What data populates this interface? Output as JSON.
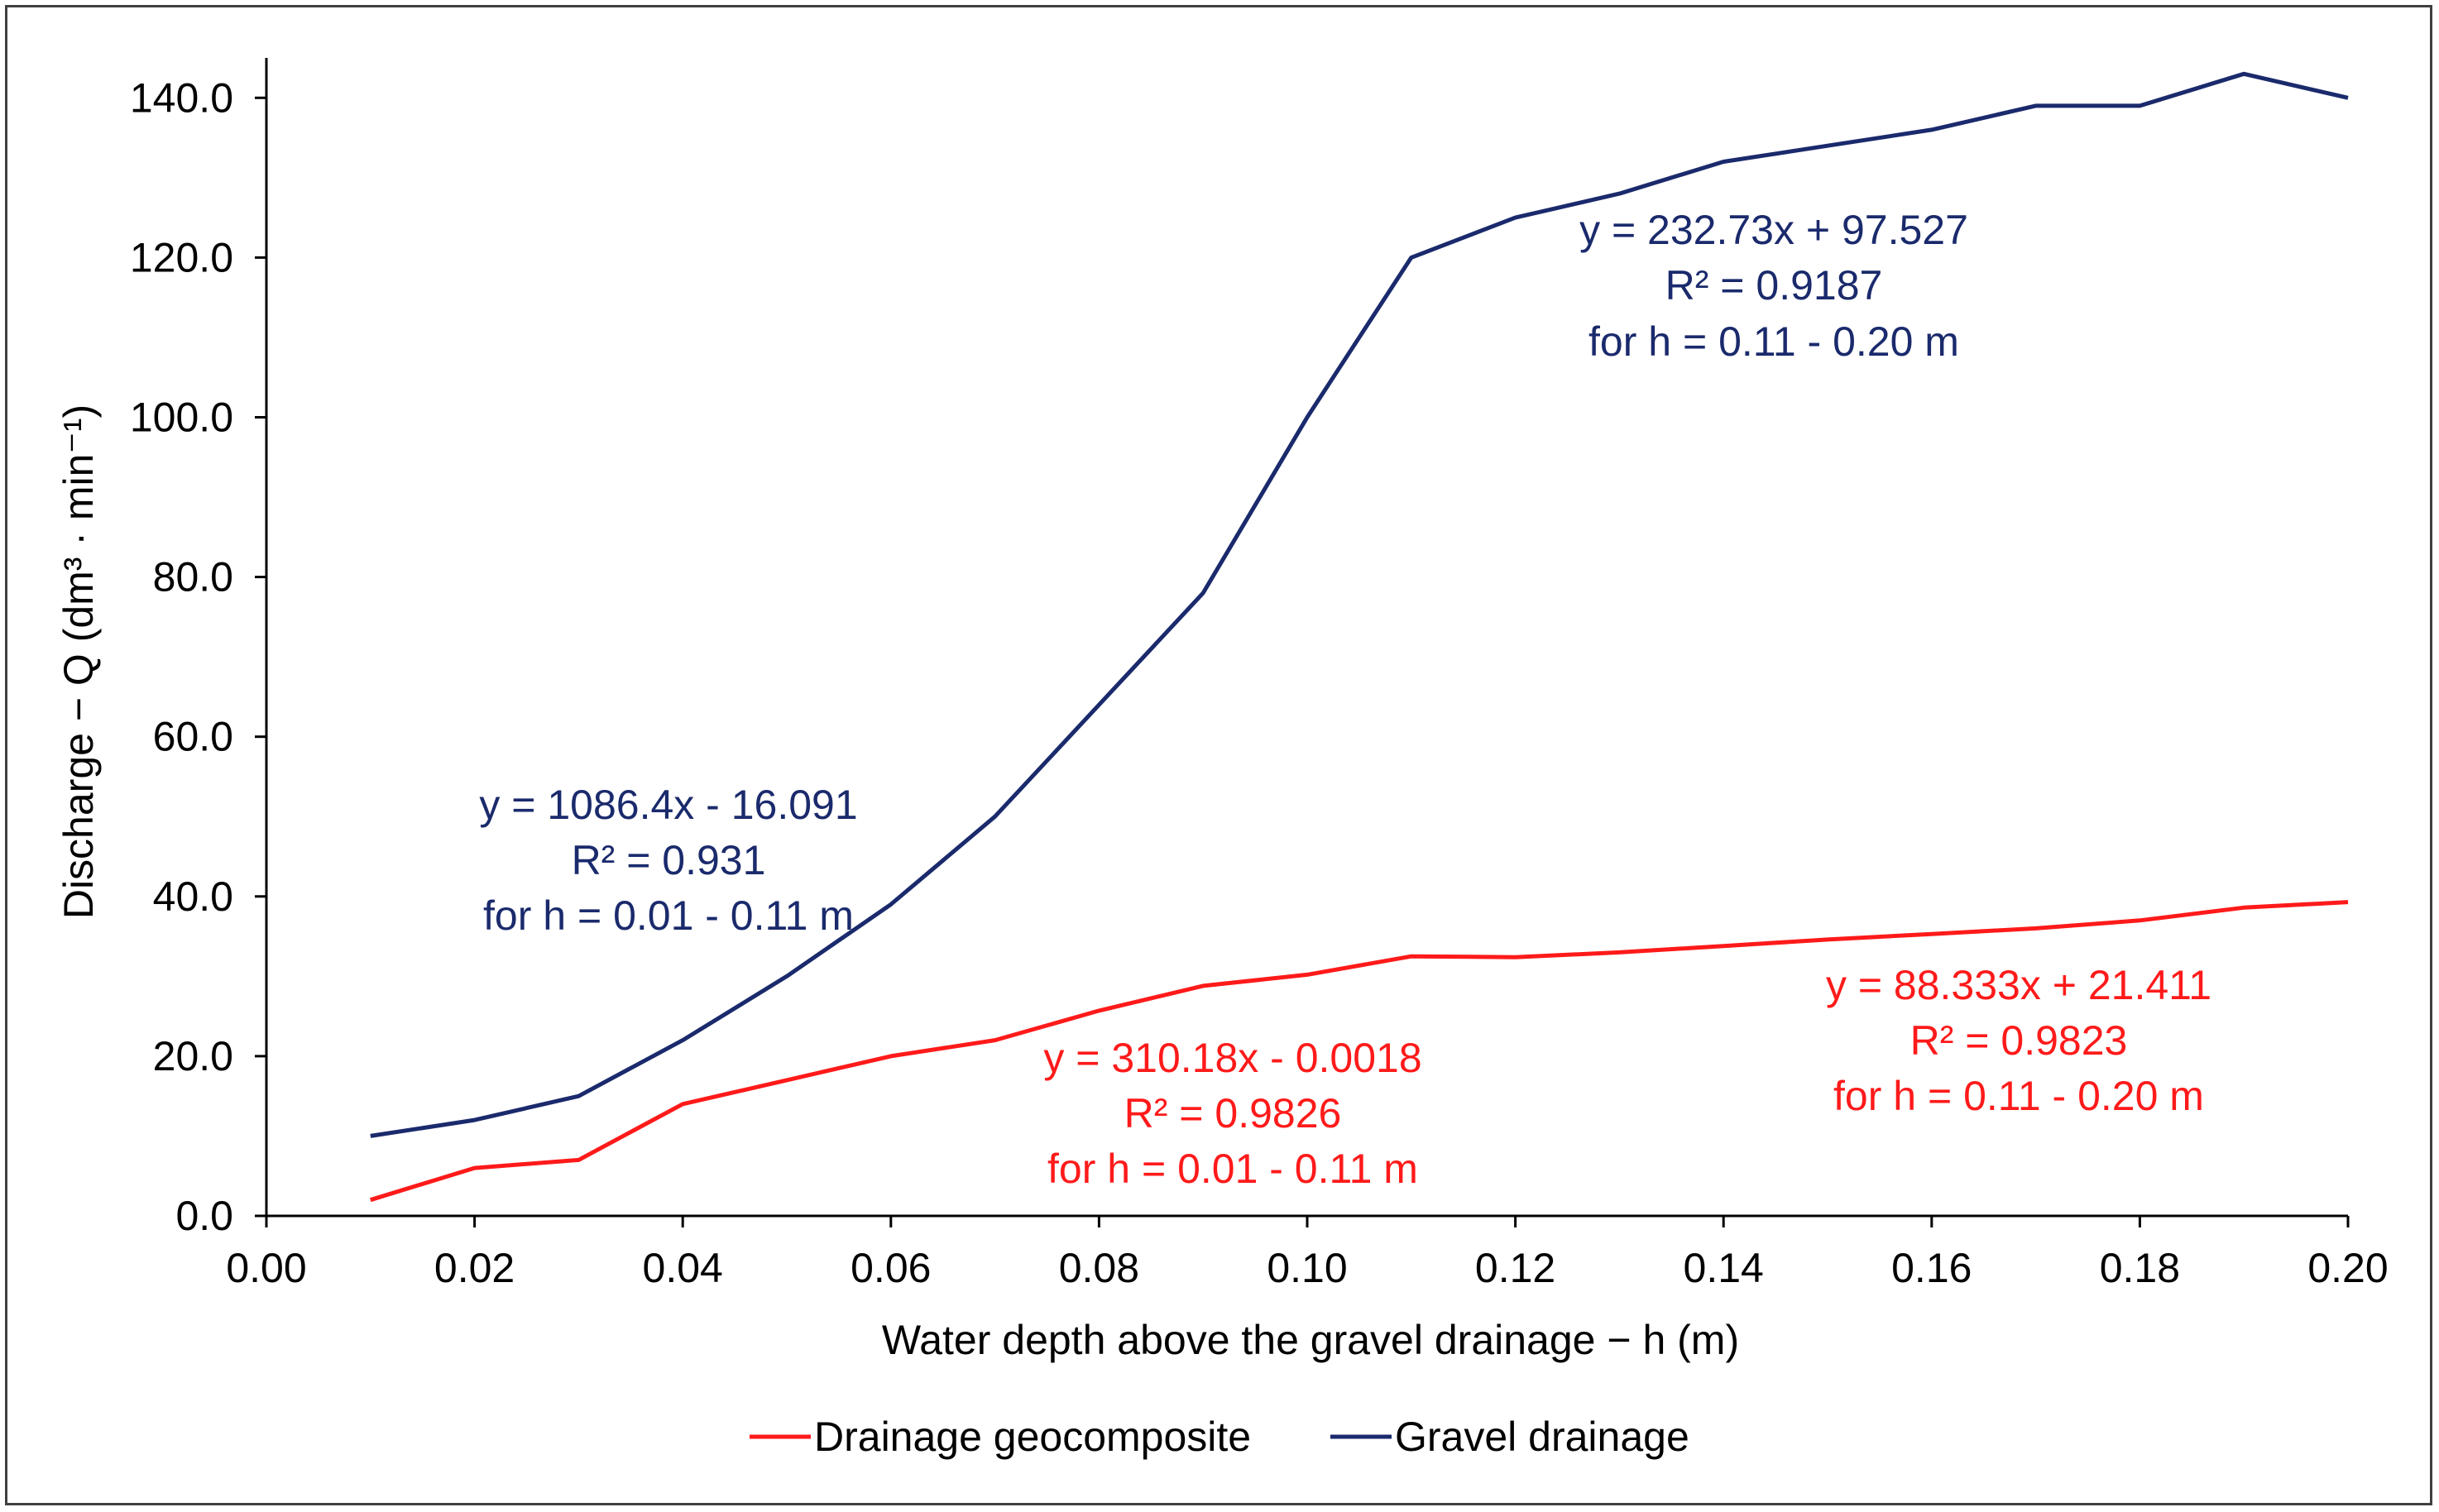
{
  "chart_data": {
    "type": "line",
    "title": "",
    "xlabel": "Water depth above the gravel drainage − h (m)",
    "ylabel": "Discharge − Q (dm³ · min⁻¹)",
    "xlim": [
      0.0,
      0.2
    ],
    "ylim": [
      0.0,
      145.0
    ],
    "xticks": [
      0.0,
      0.02,
      0.04,
      0.06,
      0.08,
      0.1,
      0.12,
      0.14,
      0.16,
      0.18,
      0.2
    ],
    "xtick_labels": [
      "0.00",
      "0.02",
      "0.04",
      "0.06",
      "0.08",
      "0.10",
      "0.12",
      "0.14",
      "0.16",
      "0.18",
      "0.20"
    ],
    "yticks": [
      0,
      20,
      40,
      60,
      80,
      100,
      120,
      140
    ],
    "ytick_labels": [
      "0.0",
      "20.0",
      "40.0",
      "60.0",
      "80.0",
      "100.0",
      "120.0",
      "140.0"
    ],
    "grid": false,
    "legend_position": "bottom",
    "x": [
      0.01,
      0.02,
      0.03,
      0.04,
      0.05,
      0.06,
      0.07,
      0.08,
      0.09,
      0.1,
      0.11,
      0.12,
      0.13,
      0.14,
      0.15,
      0.16,
      0.17,
      0.18,
      0.19,
      0.2
    ],
    "series": [
      {
        "name": "Drainage geocomposite",
        "color": "#ff1a1a",
        "values": [
          2.0,
          6.0,
          7.0,
          14.0,
          17.0,
          20.0,
          22.0,
          25.7,
          28.8,
          30.2,
          32.5,
          32.4,
          33.0,
          33.8,
          34.6,
          35.3,
          36.0,
          37.0,
          38.6,
          39.3
        ]
      },
      {
        "name": "Gravel drainage",
        "color": "#1a2a6c",
        "values": [
          10.0,
          12.0,
          15.0,
          22.0,
          30.0,
          39.0,
          50.0,
          64.0,
          78.0,
          100.0,
          120.0,
          125.0,
          128.0,
          132.0,
          134.0,
          136.0,
          139.0,
          139.0,
          143.0,
          140.0
        ]
      }
    ],
    "annotations": [
      {
        "series": "Gravel drainage",
        "color": "#1a2a6c",
        "lines": [
          "y = 1086.4x - 16.091",
          "R² = 0.931",
          "for h = 0.01 - 0.11 m"
        ]
      },
      {
        "series": "Gravel drainage",
        "color": "#1a2a6c",
        "lines": [
          "y = 232.73x + 97.527",
          "R² = 0.9187",
          "for h = 0.11 - 0.20 m"
        ]
      },
      {
        "series": "Drainage geocomposite",
        "color": "#ff1a1a",
        "lines": [
          "y = 310.18x - 0.0018",
          "R² = 0.9826",
          "for h = 0.01 - 0.11 m"
        ]
      },
      {
        "series": "Drainage geocomposite",
        "color": "#ff1a1a",
        "lines": [
          "y = 88.333x + 21.411",
          "R² = 0.9823",
          "for h = 0.11 - 0.20 m"
        ]
      }
    ]
  }
}
